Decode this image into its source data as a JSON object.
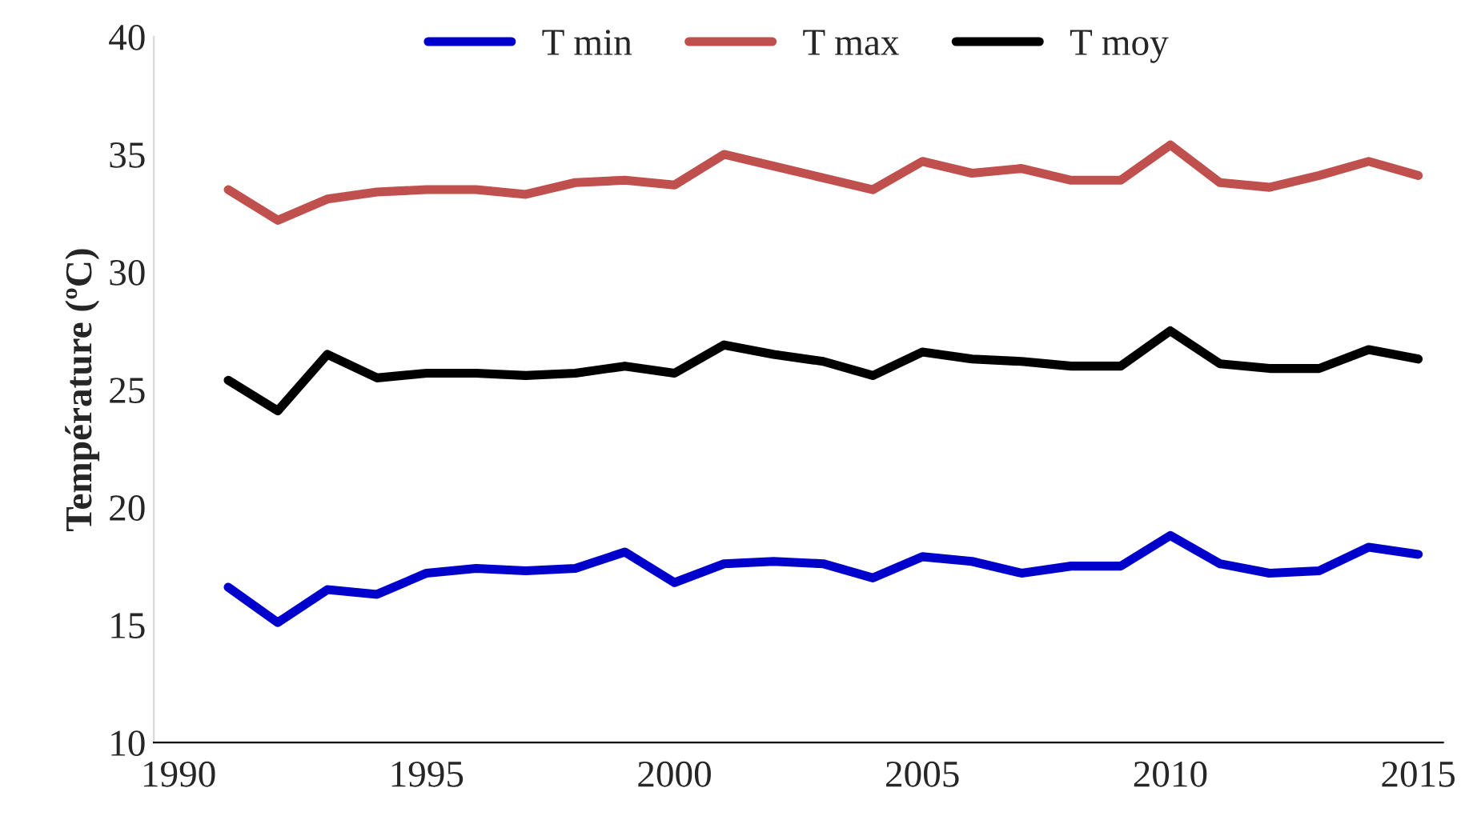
{
  "chart_data": {
    "type": "line",
    "ylabel": "Température (ºC)",
    "categories": [
      "1990",
      null,
      null,
      null,
      null,
      "1995",
      null,
      null,
      null,
      null,
      "2000",
      null,
      null,
      null,
      null,
      "2005",
      null,
      null,
      null,
      null,
      "2010",
      null,
      null,
      null,
      null,
      "2015"
    ],
    "series": [
      {
        "name": "T min",
        "color": "#0000cc",
        "values": [
          null,
          16.6,
          15.1,
          16.5,
          16.3,
          17.2,
          17.4,
          17.3,
          17.4,
          18.1,
          16.8,
          17.6,
          17.7,
          17.6,
          17.0,
          17.9,
          17.7,
          17.2,
          17.5,
          17.5,
          18.8,
          17.6,
          17.2,
          17.3,
          18.3,
          18.0
        ]
      },
      {
        "name": "T max",
        "color": "#c0504d",
        "values": [
          null,
          33.5,
          32.2,
          33.1,
          33.4,
          33.5,
          33.5,
          33.3,
          33.8,
          33.9,
          33.7,
          35.0,
          34.5,
          34.0,
          33.5,
          34.7,
          34.2,
          34.4,
          33.9,
          33.9,
          35.4,
          33.8,
          33.6,
          34.1,
          34.7,
          34.1
        ]
      },
      {
        "name": "T moy",
        "color": "#000000",
        "values": [
          null,
          25.4,
          24.1,
          26.5,
          25.5,
          25.7,
          25.7,
          25.6,
          25.7,
          26.0,
          25.7,
          26.9,
          26.5,
          26.2,
          25.6,
          26.6,
          26.3,
          26.2,
          26.0,
          26.0,
          27.5,
          26.1,
          25.9,
          25.9,
          26.7,
          26.3
        ]
      }
    ],
    "ylim": [
      10,
      40
    ],
    "yticks": [
      10,
      15,
      20,
      25,
      30,
      35,
      40
    ],
    "grid": false,
    "legend": "top",
    "marker": "none",
    "line_style": "solid"
  }
}
